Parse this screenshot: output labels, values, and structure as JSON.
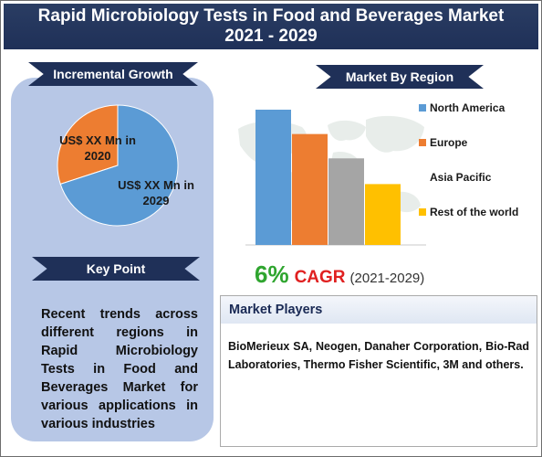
{
  "title": {
    "line1": "Rapid Microbiology Tests in Food and Beverages Market",
    "line2": "2021 - 2029"
  },
  "incremental_growth": {
    "heading": "Incremental Growth",
    "label_2020": "US$ XX Mn in 2020",
    "label_2029": "US$ XX Mn in 2029"
  },
  "key_point": {
    "heading": "Key Point",
    "text": "Recent trends across different regions in Rapid Microbiology Tests in Food and Beverages Market for various applications in various industries"
  },
  "market_by_region": {
    "heading": "Market By Region",
    "legend": [
      {
        "name": "North America",
        "color": "#5b9bd5"
      },
      {
        "name": "Europe",
        "color": "#ed7d31"
      },
      {
        "name": "Asia Pacific",
        "color": "#a5a5a5"
      },
      {
        "name": "Rest of the world",
        "color": "#ffc000"
      }
    ]
  },
  "chart_data": [
    {
      "type": "pie",
      "slices": [
        {
          "label": "US$ XX Mn in 2020",
          "value": 30,
          "color": "#ed7d31"
        },
        {
          "label": "US$ XX Mn in 2029",
          "value": 70,
          "color": "#5b9bd5"
        }
      ]
    },
    {
      "type": "bar",
      "categories": [
        "North America",
        "Europe",
        "Asia Pacific",
        "Rest of the world"
      ],
      "values": [
        100,
        82,
        64,
        45
      ],
      "colors": [
        "#5b9bd5",
        "#ed7d31",
        "#a5a5a5",
        "#ffc000"
      ],
      "ylim": [
        0,
        100
      ]
    }
  ],
  "cagr": {
    "percent": "6%",
    "label": "CAGR",
    "years": "(2021-2029)"
  },
  "market_players": {
    "heading": "Market Players",
    "text": "BioMerieux SA, Neogen, Danaher Corporation, Bio-Rad Laboratories, Thermo Fisher Scientific, 3M and others."
  }
}
